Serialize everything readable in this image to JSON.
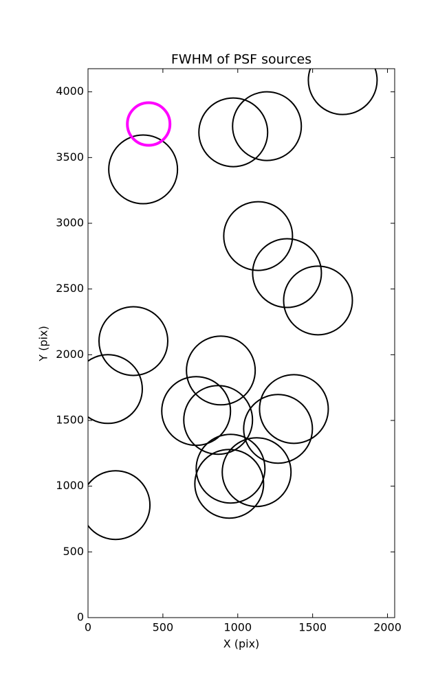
{
  "chart_data": {
    "type": "scatter",
    "title": "FWHM of PSF sources",
    "x_label": "X (pix)",
    "y_label": "Y (pix)",
    "xlim": [
      0,
      2048
    ],
    "ylim": [
      0,
      4176
    ],
    "xticks": [
      0,
      500,
      1000,
      1500,
      2000
    ],
    "yticks": [
      0,
      500,
      1000,
      1500,
      2000,
      2500,
      3000,
      3500,
      4000
    ],
    "series": [
      {
        "color": "#000000",
        "marker": "open-circle",
        "marker_size": 50,
        "line_width": 2,
        "x": [
          368,
          970,
          1195,
          1701,
          1136,
          1329,
          1536,
          303,
          133,
          887,
          722,
          869,
          1375,
          1269,
          952,
          943,
          1126,
          184
        ],
        "values": [
          3410,
          3692,
          3739,
          4089,
          2903,
          2621,
          2413,
          2104,
          1739,
          1880,
          1572,
          1504,
          1587,
          1436,
          1133,
          1018,
          1107,
          856
        ]
      },
      {
        "color": "#ff00ff",
        "marker": "open-circle",
        "marker_size": 31,
        "line_width": 4,
        "x": [
          405
        ],
        "values": [
          3755
        ]
      }
    ]
  }
}
